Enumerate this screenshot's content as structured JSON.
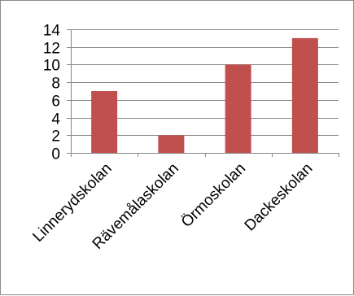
{
  "chart_data": {
    "type": "bar",
    "categories": [
      "Linnerydskolan",
      "Rävemålaskolan",
      "Örmoskolan",
      "Dackeskolan"
    ],
    "values": [
      7,
      2,
      10,
      13
    ],
    "ylim": [
      0,
      14
    ],
    "yticks": [
      0,
      2,
      4,
      6,
      8,
      10,
      12,
      14
    ],
    "grid": true,
    "legend": "none",
    "colors": {
      "bar": "#c0504d",
      "grid": "#888888",
      "axis": "#888888"
    }
  }
}
